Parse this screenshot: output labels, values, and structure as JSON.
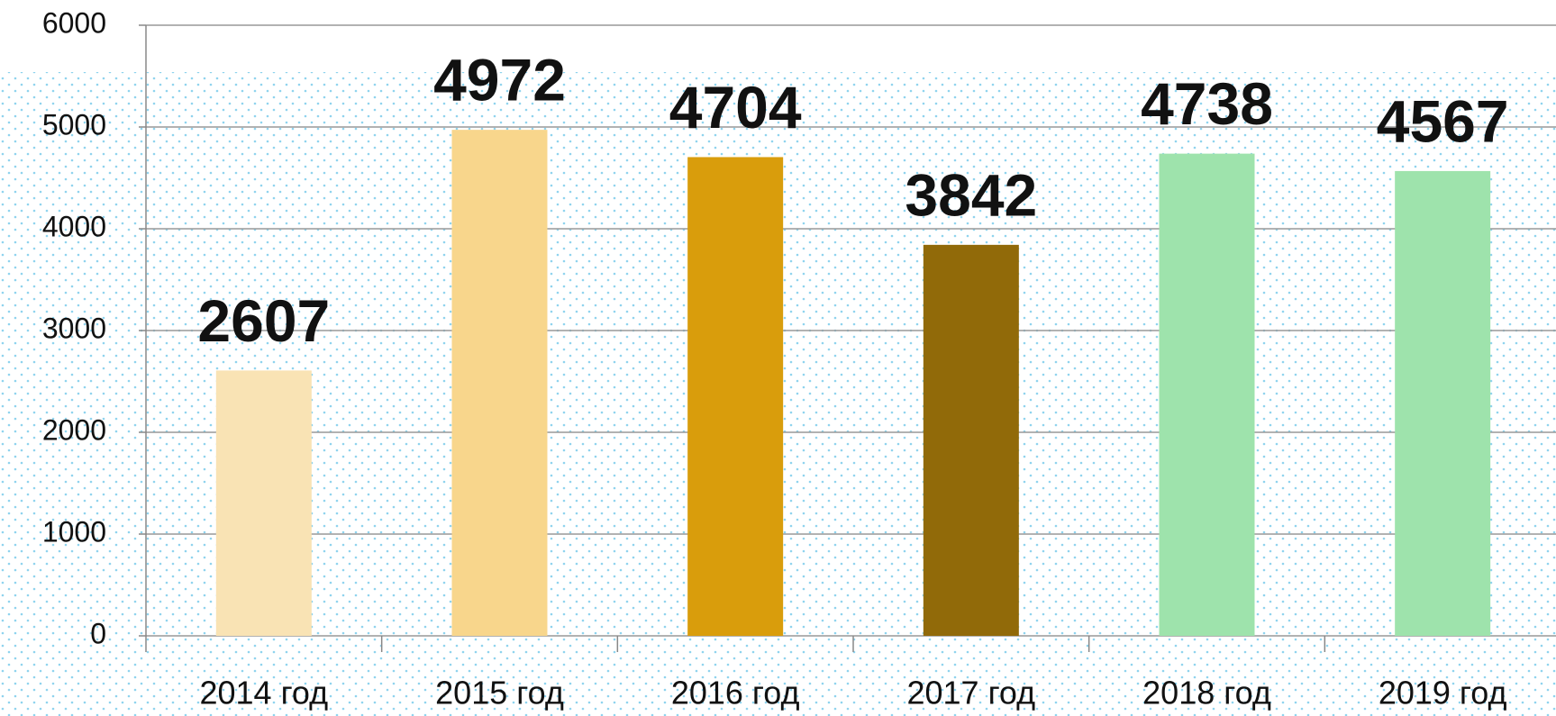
{
  "chart_data": {
    "type": "bar",
    "categories": [
      "2014 год",
      "2015 год",
      "2016 год",
      "2017 год",
      "2018 год",
      "2019 год"
    ],
    "values": [
      2607,
      4972,
      4704,
      3842,
      4738,
      4567
    ],
    "colors": [
      "#f9e3b4",
      "#f8d68c",
      "#d99d0c",
      "#916a09",
      "#9ee3ac",
      "#9ee3ac"
    ],
    "ylim": [
      0,
      6000
    ],
    "yticks": [
      0,
      1000,
      2000,
      3000,
      4000,
      5000,
      6000
    ],
    "grid": true
  }
}
